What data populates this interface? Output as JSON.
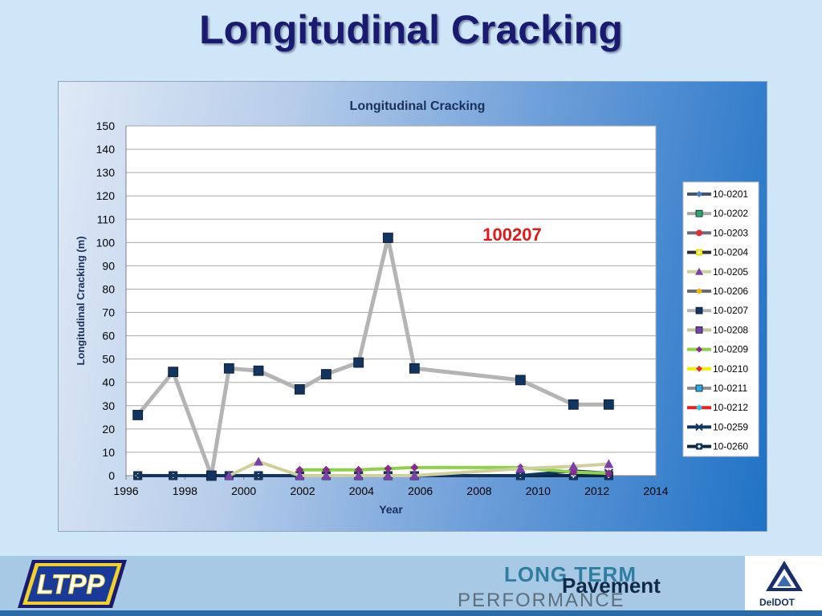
{
  "slide": {
    "title": "Longitudinal Cracking",
    "annotation": "100207"
  },
  "logos": {
    "ltpp": "LTPP",
    "program_line1": "LONG TERM",
    "program_line2": "Pavement",
    "program_line3": "PERFORMANCE",
    "agency": "DelDOT"
  },
  "chart_data": {
    "type": "line",
    "title": "Longitudinal Cracking",
    "xlabel": "Year",
    "ylabel": "Longitudinal Cracking (m)",
    "xlim": [
      1996,
      2014
    ],
    "ylim": [
      0,
      150
    ],
    "x_ticks": [
      1996,
      1998,
      2000,
      2002,
      2004,
      2006,
      2008,
      2010,
      2012,
      2014
    ],
    "y_ticks": [
      0,
      10,
      20,
      30,
      40,
      50,
      60,
      70,
      80,
      90,
      100,
      110,
      120,
      130,
      140,
      150
    ],
    "grid": "horizontal",
    "legend_position": "right",
    "series": [
      {
        "name": "10-0201",
        "color": "#4a7bbf",
        "line": "#44546a",
        "marker": "diamond",
        "x": [
          1996.4,
          1997.6,
          1998.9,
          1999.5,
          2000.5,
          2001.9,
          2002.8,
          2003.9,
          2004.9,
          2005.8,
          2009.4,
          2011.2,
          2012.4
        ],
        "y": [
          0,
          0,
          0,
          0,
          0,
          0,
          0,
          0,
          0,
          0,
          0,
          0,
          0
        ]
      },
      {
        "name": "10-0202",
        "color": "#2ea86a",
        "line": "#a8a8a8",
        "marker": "square",
        "x": [
          1996.4,
          1997.6,
          1998.9,
          1999.5,
          2000.5,
          2001.9,
          2002.8,
          2003.9,
          2004.9,
          2005.8,
          2009.4,
          2011.2,
          2012.4
        ],
        "y": [
          0,
          0,
          0,
          0,
          0,
          0,
          0,
          0,
          0,
          0,
          0,
          0,
          0
        ]
      },
      {
        "name": "10-0203",
        "color": "#e03030",
        "line": "#6a6a7a",
        "marker": "circle",
        "x": [
          1996.4,
          1997.6,
          1998.9,
          1999.5,
          2000.5,
          2001.9,
          2002.8,
          2003.9,
          2004.9,
          2005.8,
          2009.4,
          2011.2,
          2012.4
        ],
        "y": [
          0,
          0,
          0,
          0,
          0,
          0,
          0,
          0,
          0,
          0,
          0,
          0,
          0
        ]
      },
      {
        "name": "10-0204",
        "color": "#f0e000",
        "line": "#2e2e3a",
        "marker": "plus-box",
        "x": [
          1996.4,
          1997.6,
          1998.9,
          1999.5,
          2000.5,
          2001.9,
          2002.8,
          2003.9,
          2004.9,
          2005.8,
          2009.4,
          2011.2,
          2012.4
        ],
        "y": [
          0,
          0,
          0,
          0,
          0,
          0,
          0,
          0,
          0,
          0,
          0,
          0,
          0
        ]
      },
      {
        "name": "10-0205",
        "color": "#7a3fa8",
        "line": "#cfcf9a",
        "marker": "triangle",
        "x": [
          1999.5,
          2000.5,
          2001.9,
          2002.8,
          2003.9,
          2004.9,
          2005.8,
          2009.4,
          2011.2,
          2012.4
        ],
        "y": [
          0,
          6,
          0,
          0,
          0,
          0,
          0,
          3,
          4,
          5
        ]
      },
      {
        "name": "10-0206",
        "color": "#f0b800",
        "line": "#6a6a6a",
        "marker": "diamond",
        "x": [
          1996.4,
          1997.6,
          1998.9,
          1999.5,
          2000.5,
          2001.9,
          2002.8,
          2003.9,
          2004.9,
          2005.8,
          2009.4,
          2011.2,
          2012.4
        ],
        "y": [
          0,
          0,
          0,
          0,
          0,
          0,
          0,
          0,
          0,
          0,
          0,
          0,
          0
        ]
      },
      {
        "name": "10-0207",
        "color": "#12345e",
        "line": "#b4b4b4",
        "marker": "square",
        "x": [
          1996.4,
          1997.6,
          1998.9,
          1999.5,
          2000.5,
          2001.9,
          2002.8,
          2003.9,
          2004.9,
          2005.8,
          2009.4,
          2011.2,
          2012.4
        ],
        "y": [
          26,
          44.5,
          0,
          46,
          45,
          37,
          43.5,
          48.5,
          102,
          46,
          41,
          30.5,
          30.5
        ]
      },
      {
        "name": "10-0208",
        "color": "#7a3fa8",
        "line": "#c8c49a",
        "marker": "square",
        "x": [
          1996.4,
          1997.6,
          1998.9,
          1999.5,
          2000.5,
          2001.9,
          2002.8,
          2003.9,
          2004.9,
          2005.8,
          2009.4,
          2011.2,
          2012.4
        ],
        "y": [
          0,
          0,
          0,
          0,
          0,
          0,
          0,
          0,
          0,
          0,
          0,
          0,
          0
        ]
      },
      {
        "name": "10-0209",
        "color": "#8a2a8a",
        "line": "#8ed24a",
        "marker": "diamond",
        "x": [
          2001.9,
          2002.8,
          2003.9,
          2004.9,
          2005.8,
          2009.4,
          2011.2,
          2012.4
        ],
        "y": [
          2.5,
          2.5,
          2.5,
          3,
          3.5,
          3.5,
          1.5,
          1
        ]
      },
      {
        "name": "10-0210",
        "color": "#e03030",
        "line": "#f0f000",
        "marker": "diamond",
        "x": [
          1996.4,
          1997.6,
          1998.9,
          1999.5,
          2000.5,
          2001.9,
          2002.8,
          2003.9,
          2004.9,
          2005.8,
          2009.4,
          2011.2,
          2012.4
        ],
        "y": [
          0,
          0,
          0,
          0,
          0,
          0,
          0,
          0,
          0,
          0,
          0,
          0,
          0
        ]
      },
      {
        "name": "10-0211",
        "color": "#2aa8e0",
        "line": "#909090",
        "marker": "square",
        "x": [
          1996.4,
          1997.6,
          1998.9,
          1999.5,
          2000.5,
          2001.9,
          2002.8,
          2003.9,
          2004.9,
          2005.8,
          2009.4,
          2011.2,
          2012.4
        ],
        "y": [
          0,
          0,
          0,
          0,
          0,
          0,
          0,
          0,
          0,
          0,
          0,
          0,
          0
        ]
      },
      {
        "name": "10-0212",
        "color": "#2ac8e8",
        "line": "#e82020",
        "marker": "diamond",
        "x": [
          1996.4,
          1997.6,
          1998.9,
          1999.5,
          2000.5,
          2001.9,
          2002.8,
          2003.9,
          2004.9,
          2005.8,
          2009.4,
          2011.2,
          2012.4
        ],
        "y": [
          0,
          0,
          0,
          0,
          0,
          0,
          0,
          0,
          0,
          0,
          0,
          0,
          0
        ]
      },
      {
        "name": "10-0259",
        "color": "#12345e",
        "line": "#12345e",
        "marker": "x",
        "x": [
          1996.4,
          1997.6,
          1998.9,
          1999.5,
          2000.5,
          2001.9,
          2002.8,
          2003.9,
          2004.9,
          2005.8,
          2009.4,
          2011.2,
          2012.4
        ],
        "y": [
          0,
          0,
          0,
          0,
          0,
          0,
          0,
          0,
          0,
          0,
          0,
          2,
          1
        ]
      },
      {
        "name": "10-0260",
        "color": "#12345e",
        "line": "#0d2548",
        "marker": "plus-box",
        "x": [
          1996.4,
          1997.6,
          1998.9,
          1999.5,
          2000.5,
          2001.9,
          2002.8,
          2003.9,
          2004.9,
          2005.8,
          2009.4,
          2011.2,
          2012.4
        ],
        "y": [
          0,
          0,
          0,
          0,
          0,
          0,
          0,
          0,
          0,
          0,
          0,
          0,
          0
        ]
      }
    ]
  }
}
